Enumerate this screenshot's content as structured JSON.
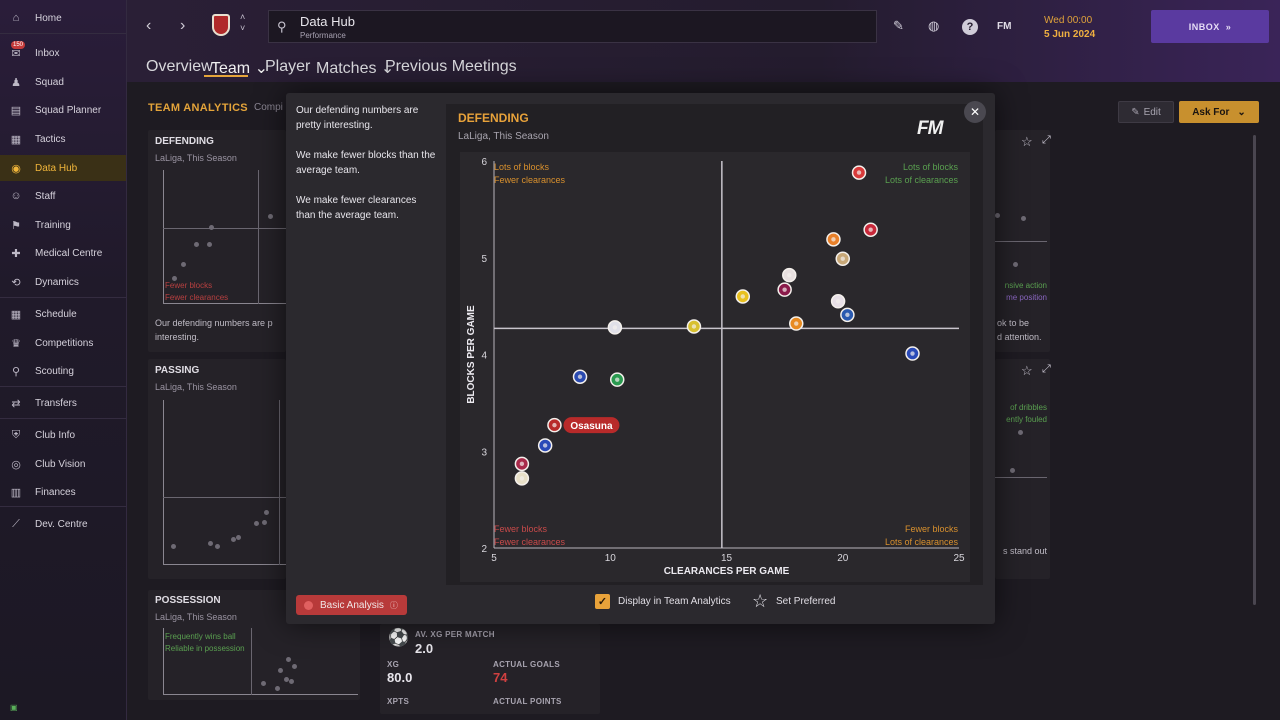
{
  "sidebar": {
    "items": [
      {
        "label": "Home",
        "icon": "home-icon"
      },
      {
        "label": "Inbox",
        "icon": "inbox-icon",
        "badge": "150"
      },
      {
        "label": "Squad",
        "icon": "squad-icon"
      },
      {
        "label": "Squad Planner",
        "icon": "clipboard-icon"
      },
      {
        "label": "Tactics",
        "icon": "tactics-icon"
      },
      {
        "label": "Data Hub",
        "icon": "data-hub-icon"
      },
      {
        "label": "Staff",
        "icon": "staff-icon"
      },
      {
        "label": "Training",
        "icon": "training-icon"
      },
      {
        "label": "Medical Centre",
        "icon": "medical-icon"
      },
      {
        "label": "Dynamics",
        "icon": "dynamics-icon"
      },
      {
        "label": "Schedule",
        "icon": "calendar-icon"
      },
      {
        "label": "Competitions",
        "icon": "trophy-icon"
      },
      {
        "label": "Scouting",
        "icon": "scouting-icon"
      },
      {
        "label": "Transfers",
        "icon": "transfers-icon"
      },
      {
        "label": "Club Info",
        "icon": "shield-icon"
      },
      {
        "label": "Club Vision",
        "icon": "vision-icon"
      },
      {
        "label": "Finances",
        "icon": "finances-icon"
      },
      {
        "label": "Dev. Centre",
        "icon": "dev-centre-icon"
      }
    ]
  },
  "header": {
    "title": "Data Hub",
    "subtitle": "Performance",
    "date_line1": "Wed 00:00",
    "date_line2": "5 Jun 2024",
    "inbox_label": "INBOX",
    "fm_label": "FM"
  },
  "tabs": [
    {
      "label": "Overview"
    },
    {
      "label": "Team ⌄"
    },
    {
      "label": "Player"
    },
    {
      "label": "Matches ⌄"
    },
    {
      "label": "Previous Meetings"
    }
  ],
  "main": {
    "section_title": "TEAM ANALYTICS",
    "section_sub": "Compi",
    "edit_label": "Edit",
    "askfor_label": "Ask For",
    "cards": {
      "defending": {
        "title": "DEFENDING",
        "sub": "LaLiga, This Season",
        "text": "Our defending numbers are p",
        "text2": "interesting.",
        "q1": "Fewer blocks",
        "q2": "Fewer clearances"
      },
      "passing": {
        "title": "PASSING",
        "sub": "LaLiga, This Season"
      },
      "possession": {
        "title": "POSSESSION",
        "sub": "LaLiga, This Season",
        "q1": "Frequently wins ball",
        "q2": "Reliable in possession"
      },
      "right_top": {
        "t1": "nsive action",
        "t2": "me position",
        "t3": "ok to be",
        "t4": "d attention."
      },
      "right_mid": {
        "t1": "of dribbles",
        "t2": "ently fouled",
        "t3": "s stand out"
      },
      "xg": {
        "label1": "AV. XG PER MATCH",
        "val1": "2.0",
        "label2": "XG",
        "val2": "80.0",
        "label3": "ACTUAL GOALS",
        "val3": "74",
        "label4": "XPTS",
        "label5": "ACTUAL POINTS"
      }
    }
  },
  "modal": {
    "text1": "Our defending numbers are pretty interesting.",
    "text2": "We make fewer blocks than the average team.",
    "text3": "We make fewer clearances than the average team.",
    "chart_title": "DEFENDING",
    "chart_sub": "LaLiga, This Season",
    "chart_logo": "FM",
    "basic_label": "Basic Analysis",
    "display_label": "Display in Team Analytics",
    "preferred_label": "Set Preferred"
  },
  "chart_data": {
    "type": "scatter",
    "title": "DEFENDING",
    "subtitle": "LaLiga, This Season",
    "xlabel": "CLEARANCES PER GAME",
    "ylabel": "BLOCKS PER GAME",
    "xlim": [
      5,
      25
    ],
    "ylim": [
      2,
      6
    ],
    "xticks": [
      5,
      10,
      15,
      20,
      25
    ],
    "yticks": [
      2,
      3,
      4,
      5,
      6
    ],
    "avg_x": 14.8,
    "avg_y": 4.27,
    "quadrants": {
      "top_left": [
        "Lots of blocks",
        "Fewer clearances"
      ],
      "top_right": [
        "Lots of blocks",
        "Lots of clearances"
      ],
      "bottom_left": [
        "Fewer blocks",
        "Fewer clearances"
      ],
      "bottom_right": [
        "Fewer blocks",
        "Lots of clearances"
      ]
    },
    "highlight": {
      "label": "Osasuna",
      "x": 7.6,
      "y": 3.27
    },
    "points": [
      {
        "x": 20.7,
        "y": 5.88,
        "color": "#d83a3a"
      },
      {
        "x": 21.2,
        "y": 5.29,
        "color": "#c8283a"
      },
      {
        "x": 19.6,
        "y": 5.19,
        "color": "#e8802a"
      },
      {
        "x": 20.0,
        "y": 4.99,
        "color": "#c8a878"
      },
      {
        "x": 17.7,
        "y": 4.82,
        "color": "#e8e0e0"
      },
      {
        "x": 17.5,
        "y": 4.67,
        "color": "#8a1a4a"
      },
      {
        "x": 15.7,
        "y": 4.6,
        "color": "#e8c020"
      },
      {
        "x": 19.8,
        "y": 4.55,
        "color": "#e8e0e8"
      },
      {
        "x": 20.2,
        "y": 4.41,
        "color": "#2a5ab0"
      },
      {
        "x": 18.0,
        "y": 4.32,
        "color": "#e88a20"
      },
      {
        "x": 10.2,
        "y": 4.28,
        "color": "#e0e0e8"
      },
      {
        "x": 13.6,
        "y": 4.29,
        "color": "#d8c030"
      },
      {
        "x": 23.0,
        "y": 4.01,
        "color": "#2a4ab8"
      },
      {
        "x": 8.7,
        "y": 3.77,
        "color": "#2a4ab0"
      },
      {
        "x": 10.3,
        "y": 3.74,
        "color": "#2a9a50"
      },
      {
        "x": 7.6,
        "y": 3.27,
        "color": "#b82a2a"
      },
      {
        "x": 7.2,
        "y": 3.06,
        "color": "#2a4ab8"
      },
      {
        "x": 6.2,
        "y": 2.87,
        "color": "#a82a4a"
      },
      {
        "x": 6.2,
        "y": 2.72,
        "color": "#e8e0c8"
      }
    ]
  }
}
